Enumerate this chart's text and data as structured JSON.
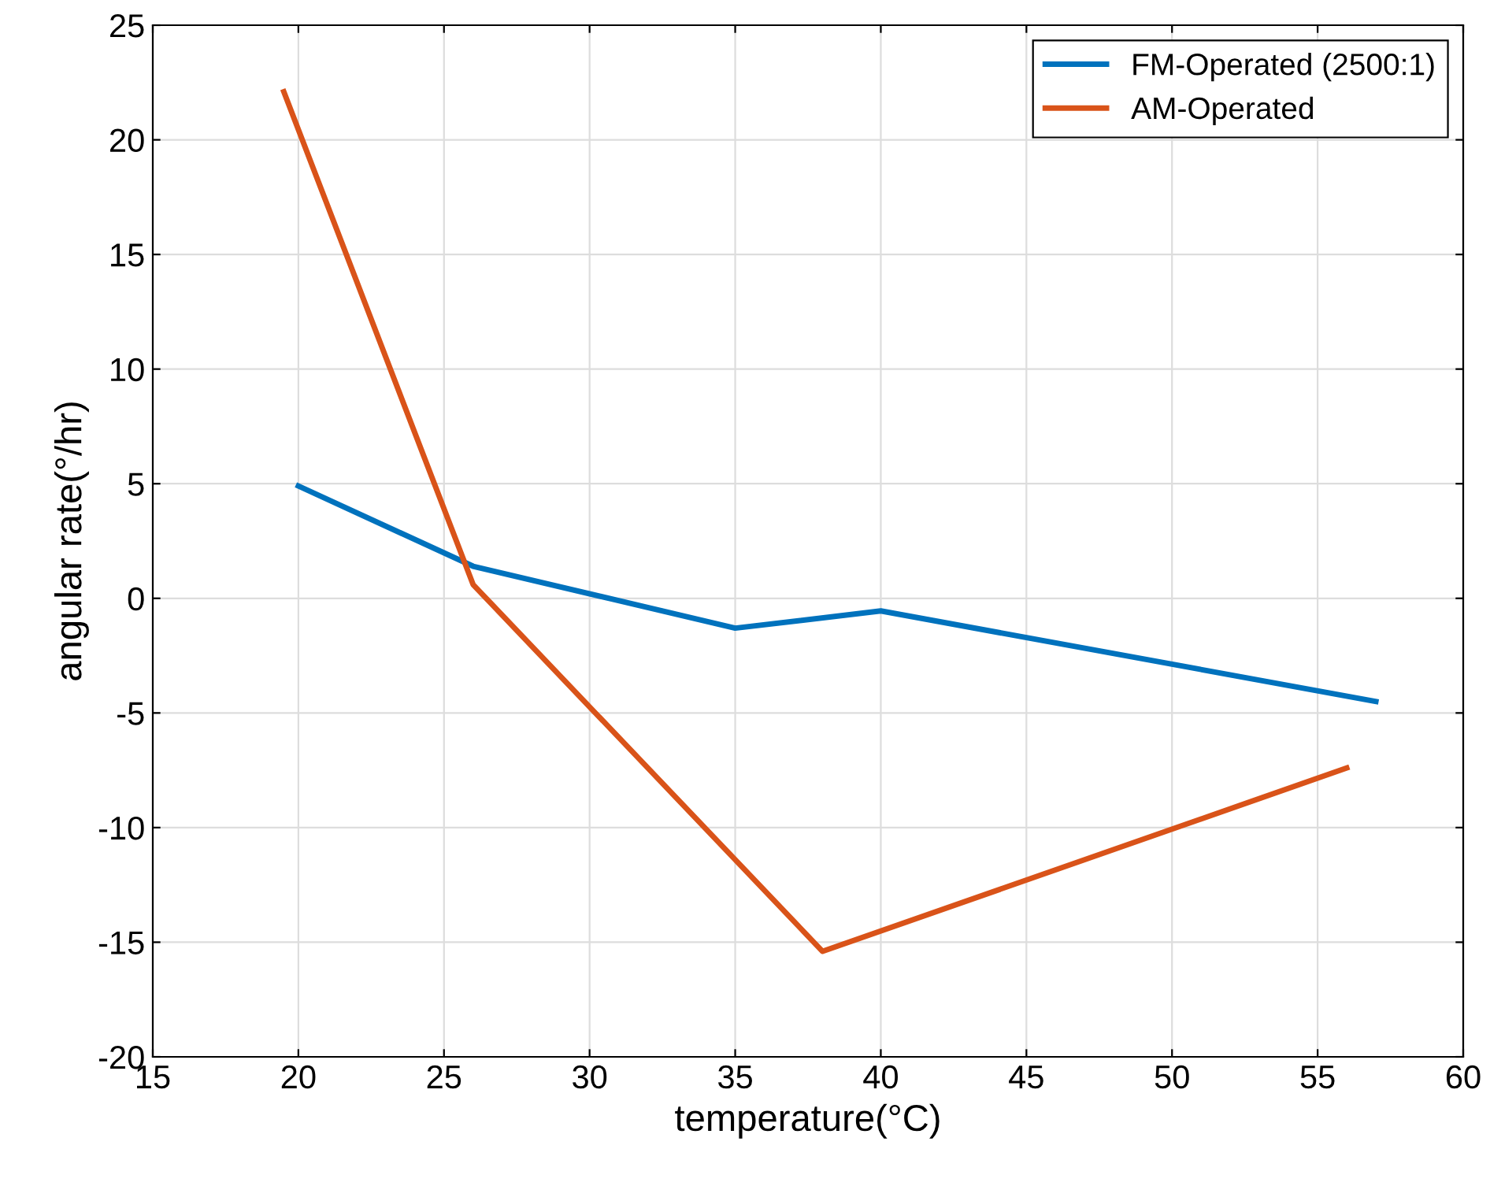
{
  "chart_data": {
    "type": "line",
    "xlabel": "temperature(°C)",
    "ylabel": "angular rate(°/hr)",
    "xlim": [
      15,
      60
    ],
    "xticks": [
      15,
      20,
      25,
      30,
      35,
      40,
      45,
      50,
      55,
      60
    ],
    "ylim": [
      -20,
      25
    ],
    "yticks": [
      -20,
      -15,
      -10,
      -5,
      0,
      5,
      10,
      15,
      20,
      25
    ],
    "grid": true,
    "legend": "top right",
    "series": [
      {
        "name": "FM-Operated (2500:1)",
        "color": "#0072bd",
        "x": [
          20,
          26,
          35,
          40,
          57
        ],
        "values": [
          4.9,
          1.4,
          -1.3,
          -0.55,
          -4.5
        ]
      },
      {
        "name": "AM-Operated",
        "color": "#d95319",
        "x": [
          19.5,
          26,
          38,
          56
        ],
        "values": [
          22.1,
          0.6,
          -15.4,
          -7.4
        ]
      }
    ]
  }
}
